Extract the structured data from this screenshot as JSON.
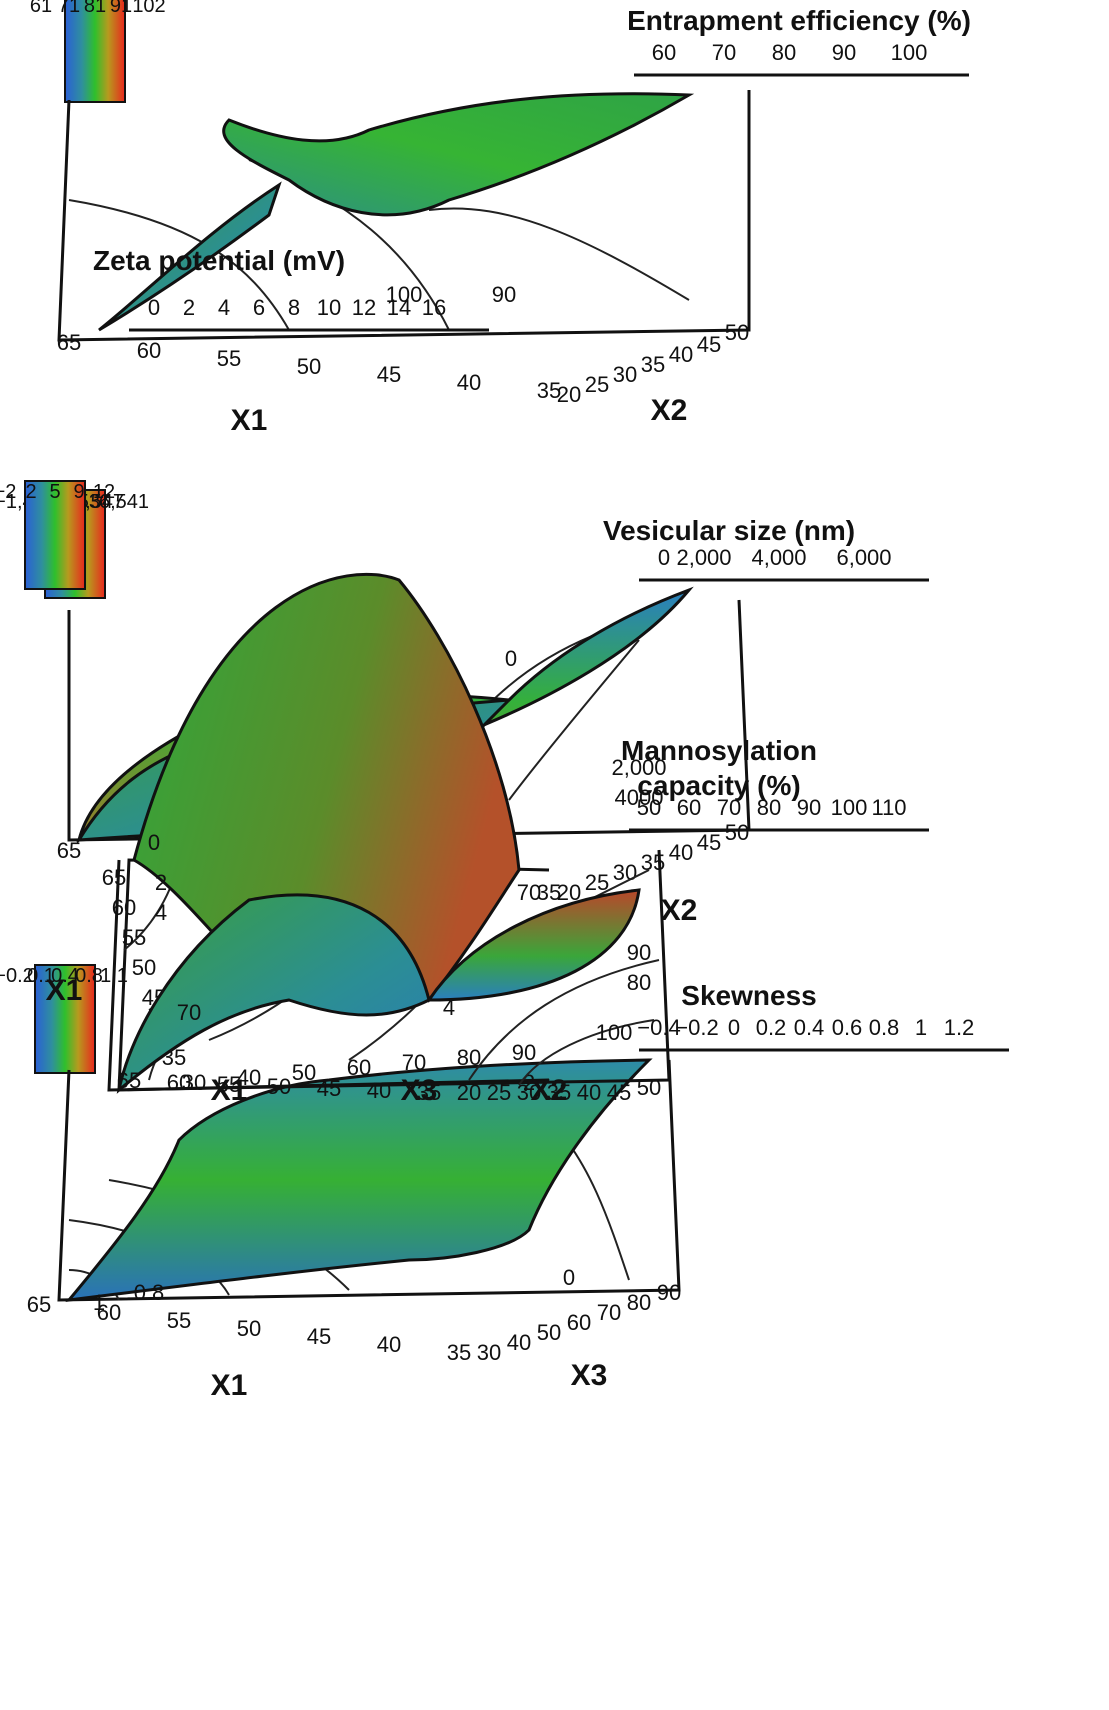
{
  "chart_data": [
    {
      "type": "surface",
      "zlabel": "Entrapment efficiency (%)",
      "z_ticks": [
        "60",
        "70",
        "80",
        "90",
        "100"
      ],
      "axis_a": {
        "name": "X2",
        "ticks": [
          "50",
          "45",
          "40",
          "35",
          "30",
          "25",
          "20"
        ]
      },
      "axis_b": {
        "name": "X1",
        "ticks": [
          "35",
          "40",
          "45",
          "50",
          "55",
          "60",
          "65"
        ]
      },
      "colorbar": [
        "102",
        "91",
        "81",
        "71",
        "61"
      ],
      "contour_labels": [
        "90",
        "100"
      ]
    },
    {
      "type": "surface",
      "zlabel": "Vesicular size (nm)",
      "z_ticks": [
        "0",
        "2,000",
        "4,000",
        "6,000"
      ],
      "axis_a": {
        "name": "X2",
        "ticks": [
          "50",
          "45",
          "40",
          "35",
          "30",
          "25",
          "20"
        ]
      },
      "axis_b": {
        "name": "X1",
        "ticks": [
          "35",
          "40",
          "45",
          "50",
          "55",
          "60",
          "65"
        ]
      },
      "colorbar": [
        "6,541",
        "4,547",
        "2,553",
        "559",
        "−1,435"
      ],
      "contour_labels": [
        "0",
        "2,000",
        "4000"
      ]
    },
    {
      "type": "surface",
      "zlabel": "Skewness",
      "z_ticks": [
        "−0.4",
        "−0.2",
        "0",
        "0.2",
        "0.4",
        "0.6",
        "0.8",
        "1",
        "1.2"
      ],
      "axis_a": {
        "name": "X3",
        "ticks": [
          "90",
          "80",
          "70",
          "60",
          "50",
          "40",
          "30"
        ]
      },
      "axis_b": {
        "name": "X1",
        "ticks": [
          "35",
          "40",
          "45",
          "50",
          "55",
          "60",
          "65"
        ]
      },
      "colorbar": [
        "1.1",
        "0.8",
        "0.4",
        "0.1",
        "−0.2"
      ],
      "contour_labels": [
        "0",
        "0.8",
        "1"
      ]
    },
    {
      "type": "surface",
      "zlabel": "Zeta potential (mV)",
      "z_ticks": [
        "0",
        "2",
        "4",
        "6",
        "8",
        "10",
        "12",
        "14",
        "16"
      ],
      "axis_a": {
        "name": "X1",
        "ticks": [
          "65",
          "60",
          "55",
          "50",
          "45",
          "40",
          "35"
        ]
      },
      "axis_b": {
        "name": "X3",
        "ticks": [
          "30",
          "40",
          "50",
          "60",
          "70",
          "80",
          "90"
        ]
      },
      "colorbar": [
        "12",
        "9",
        "5",
        "2",
        "−2"
      ],
      "contour_labels": [
        "0",
        "2",
        "4",
        "4",
        "2"
      ]
    },
    {
      "type": "surface",
      "zlabel": "Mannosylation capacity (%)",
      "zlabel_lines": [
        "Mannosylation",
        "capacity (%)"
      ],
      "z_ticks": [
        "50",
        "60",
        "70",
        "80",
        "90",
        "100",
        "110"
      ],
      "axis_a": {
        "name": "X2",
        "ticks": [
          "50",
          "45",
          "40",
          "35",
          "30",
          "25",
          "20"
        ]
      },
      "axis_b": {
        "name": "X1",
        "ticks": [
          "35",
          "40",
          "45",
          "50",
          "55",
          "60",
          "65"
        ]
      },
      "colorbar": [
        "",
        "",
        "",
        "",
        ""
      ],
      "contour_labels": [
        "90",
        "80",
        "70",
        "100",
        "70"
      ]
    }
  ],
  "colors": [
    "#e8261d",
    "#b79a1e",
    "#2fbf2c",
    "#2f8f9e",
    "#2a5fd6"
  ]
}
